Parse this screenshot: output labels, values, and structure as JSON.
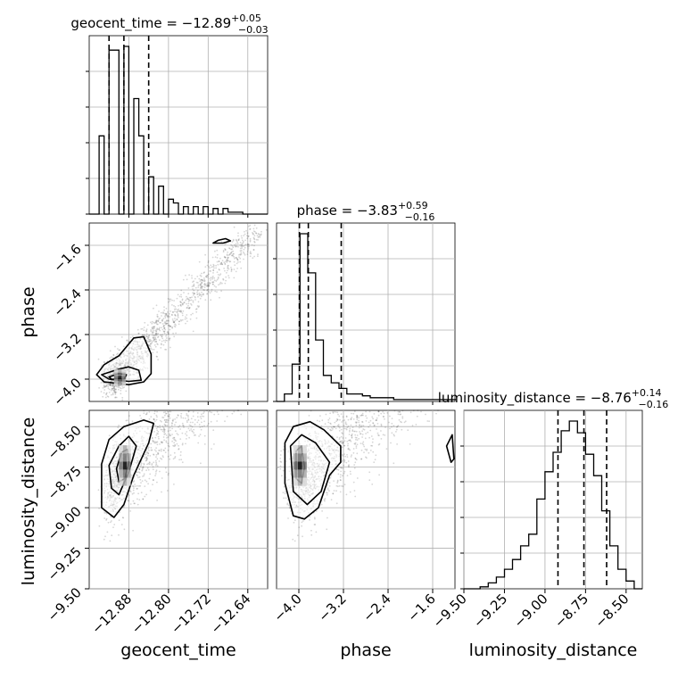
{
  "chart_data": {
    "type": "corner",
    "parameters": [
      "geocent_time",
      "phase",
      "luminosity_distance"
    ],
    "titles": [
      {
        "name": "geocent_time",
        "median": "−12.89",
        "plus": "+0.05",
        "minus": "−0.03"
      },
      {
        "name": "phase",
        "median": "−3.83",
        "plus": "+0.59",
        "minus": "−0.16"
      },
      {
        "name": "luminosity_distance",
        "median": "−8.76",
        "plus": "+0.14",
        "minus": "−0.16"
      }
    ],
    "axis_labels": {
      "geocent_time": "geocent_time",
      "phase": "phase",
      "luminosity_distance": "luminosity_distance"
    },
    "ranges": {
      "geocent_time": [
        -12.96,
        -12.6
      ],
      "phase": [
        -4.4,
        -1.2
      ],
      "luminosity_distance": [
        -9.5,
        -8.4
      ]
    },
    "ticks": {
      "geocent_time": [
        -12.88,
        -12.8,
        -12.72,
        -12.64
      ],
      "phase": [
        -4.0,
        -3.2,
        -2.4,
        -1.6
      ],
      "luminosity_distance": [
        -9.5,
        -9.25,
        -9.0,
        -8.75,
        -8.5
      ]
    },
    "tick_labels": {
      "geocent_time": [
        "−12.88",
        "−12.80",
        "−12.72",
        "−12.64"
      ],
      "phase": [
        "−4.0",
        "−3.2",
        "−2.4",
        "−1.6"
      ],
      "luminosity_distance": [
        "−9.50",
        "−9.25",
        "−9.00",
        "−8.75",
        "−8.50"
      ]
    },
    "quantile_lines": {
      "geocent_time": [
        -12.92,
        -12.89,
        -12.84
      ],
      "phase": [
        -3.99,
        -3.83,
        -3.24
      ],
      "luminosity_distance": [
        -8.92,
        -8.76,
        -8.62
      ]
    },
    "histograms": {
      "geocent_time": {
        "edges": [
          -12.96,
          -12.95,
          -12.94,
          -12.93,
          -12.92,
          -12.91,
          -12.9,
          -12.89,
          -12.88,
          -12.87,
          -12.86,
          -12.85,
          -12.84,
          -12.83,
          -12.82,
          -12.81,
          -12.8,
          -12.79,
          -12.78,
          -12.77,
          -12.76,
          -12.75,
          -12.74,
          -12.73,
          -12.72,
          -12.71,
          -12.7,
          -12.69,
          -12.68,
          -12.67,
          -12.66,
          -12.65,
          -12.64,
          -12.63,
          -12.62,
          -12.61,
          -12.6
        ],
        "counts": [
          0,
          0,
          42,
          0,
          88,
          88,
          0,
          90,
          0,
          62,
          42,
          0,
          20,
          0,
          15,
          0,
          8,
          6,
          0,
          4,
          0,
          4,
          0,
          4,
          0,
          3,
          0,
          3,
          1,
          1,
          1,
          0,
          0,
          0,
          0,
          0
        ]
      },
      "phase": {
        "edges": [
          -4.4,
          -4.26,
          -4.12,
          -3.98,
          -3.84,
          -3.7,
          -3.56,
          -3.42,
          -3.28,
          -3.14,
          -3.0,
          -2.86,
          -2.72,
          -2.58,
          -2.44,
          -2.3,
          -2.16,
          -2.02,
          -1.88,
          -1.74,
          -1.6,
          -1.46,
          -1.32,
          -1.18
        ],
        "counts": [
          0,
          4,
          20,
          90,
          69,
          33,
          14,
          10,
          7,
          4,
          4,
          3,
          2,
          2,
          2,
          1,
          1,
          1,
          1,
          1,
          1,
          1,
          1
        ]
      },
      "luminosity_distance": {
        "edges": [
          -9.5,
          -9.45,
          -9.4,
          -9.35,
          -9.3,
          -9.25,
          -9.2,
          -9.15,
          -9.1,
          -9.05,
          -9.0,
          -8.95,
          -8.9,
          -8.85,
          -8.8,
          -8.75,
          -8.7,
          -8.65,
          -8.6,
          -8.55,
          -8.5,
          -8.45,
          -8.4
        ],
        "counts": [
          0,
          0,
          1,
          3,
          6,
          10,
          15,
          22,
          28,
          46,
          60,
          70,
          81,
          86,
          80,
          69,
          58,
          40,
          22,
          10,
          4,
          0
        ]
      }
    },
    "contours": {
      "phase_vs_geocent_time": [
        {
          "level": "outer",
          "points": [
            [
              -12.945,
              -3.92
            ],
            [
              -12.93,
              -3.74
            ],
            [
              -12.9,
              -3.58
            ],
            [
              -12.87,
              -3.26
            ],
            [
              -12.85,
              -3.24
            ],
            [
              -12.835,
              -3.55
            ],
            [
              -12.835,
              -3.9
            ],
            [
              -12.85,
              -4.05
            ],
            [
              -12.88,
              -4.1
            ],
            [
              -12.93,
              -4.05
            ]
          ]
        },
        {
          "level": "mid",
          "points": [
            [
              -12.935,
              -3.92
            ],
            [
              -12.9,
              -3.82
            ],
            [
              -12.88,
              -3.78
            ],
            [
              -12.86,
              -3.84
            ],
            [
              -12.855,
              -4.02
            ],
            [
              -12.88,
              -4.04
            ],
            [
              -12.92,
              -4.0
            ]
          ]
        },
        {
          "level": "inner",
          "points": [
            [
              -12.92,
              -3.96
            ],
            [
              -12.9,
              -3.9
            ],
            [
              -12.885,
              -3.92
            ],
            [
              -12.89,
              -4.01
            ],
            [
              -12.915,
              -4.0
            ]
          ]
        },
        {
          "level": "island",
          "points": [
            [
              -12.71,
              -1.56
            ],
            [
              -12.7,
              -1.51
            ],
            [
              -12.685,
              -1.48
            ],
            [
              -12.675,
              -1.52
            ],
            [
              -12.69,
              -1.56
            ]
          ]
        }
      ],
      "luminosity_distance_vs_geocent_time": [
        {
          "level": "outer",
          "points": [
            [
              -12.935,
              -8.73
            ],
            [
              -12.92,
              -8.58
            ],
            [
              -12.89,
              -8.5
            ],
            [
              -12.85,
              -8.46
            ],
            [
              -12.83,
              -8.48
            ],
            [
              -12.84,
              -8.6
            ],
            [
              -12.87,
              -8.8
            ],
            [
              -12.89,
              -8.98
            ],
            [
              -12.91,
              -9.06
            ],
            [
              -12.935,
              -9.0
            ]
          ]
        },
        {
          "level": "mid",
          "points": [
            [
              -12.92,
              -8.74
            ],
            [
              -12.9,
              -8.62
            ],
            [
              -12.88,
              -8.56
            ],
            [
              -12.865,
              -8.62
            ],
            [
              -12.88,
              -8.78
            ],
            [
              -12.9,
              -8.92
            ],
            [
              -12.915,
              -8.88
            ]
          ]
        },
        {
          "level": "inner",
          "points": [
            [
              -12.905,
              -8.76
            ],
            [
              -12.895,
              -8.66
            ],
            [
              -12.883,
              -8.64
            ],
            [
              -12.88,
              -8.72
            ],
            [
              -12.888,
              -8.82
            ],
            [
              -12.9,
              -8.84
            ]
          ]
        }
      ],
      "luminosity_distance_vs_phase": [
        {
          "level": "outer",
          "points": [
            [
              -4.25,
              -8.6
            ],
            [
              -4.1,
              -8.5
            ],
            [
              -3.8,
              -8.47
            ],
            [
              -3.55,
              -8.52
            ],
            [
              -3.25,
              -8.62
            ],
            [
              -3.25,
              -8.72
            ],
            [
              -3.45,
              -8.8
            ],
            [
              -3.65,
              -9.0
            ],
            [
              -3.9,
              -9.07
            ],
            [
              -4.1,
              -9.05
            ],
            [
              -4.25,
              -8.85
            ]
          ]
        },
        {
          "level": "mid",
          "points": [
            [
              -4.15,
              -8.62
            ],
            [
              -3.95,
              -8.55
            ],
            [
              -3.7,
              -8.6
            ],
            [
              -3.45,
              -8.72
            ],
            [
              -3.6,
              -8.9
            ],
            [
              -3.85,
              -8.98
            ],
            [
              -4.1,
              -8.9
            ]
          ]
        },
        {
          "level": "inner",
          "points": [
            [
              -4.05,
              -8.65
            ],
            [
              -3.95,
              -8.62
            ],
            [
              -3.9,
              -8.75
            ],
            [
              -3.95,
              -8.85
            ],
            [
              -4.05,
              -8.82
            ]
          ]
        },
        {
          "level": "island",
          "points": [
            [
              -1.35,
              -8.62
            ],
            [
              -1.25,
              -8.55
            ],
            [
              -1.22,
              -8.7
            ],
            [
              -1.27,
              -8.72
            ]
          ]
        }
      ]
    },
    "grid": true
  }
}
